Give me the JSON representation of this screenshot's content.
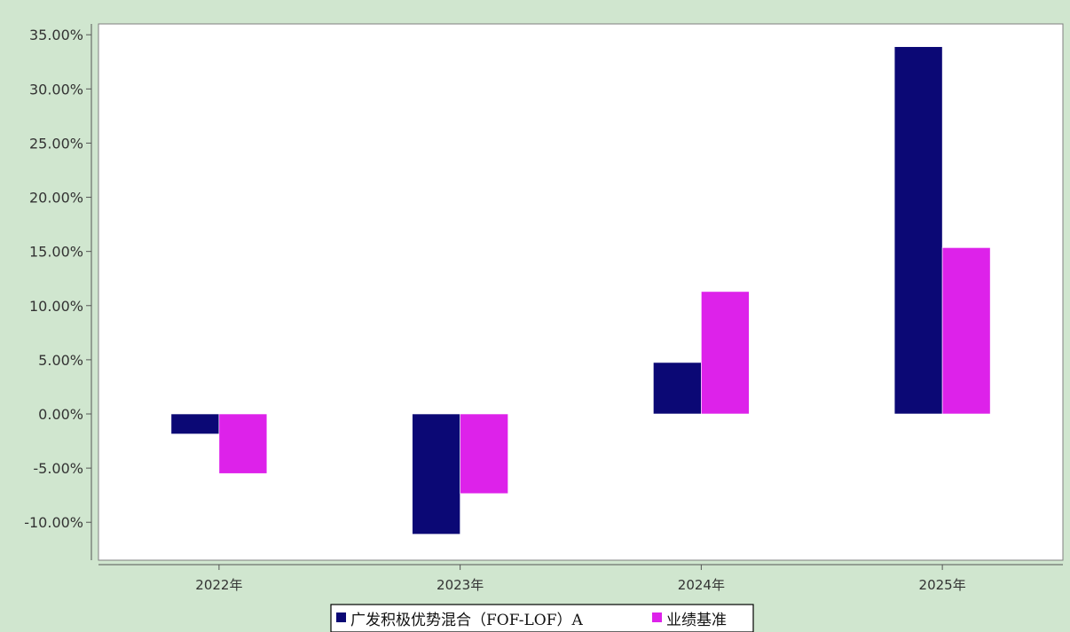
{
  "chart_data": {
    "type": "bar",
    "title": "",
    "xlabel": "",
    "ylabel": "",
    "categories": [
      "2022年",
      "2023年",
      "2024年",
      "2025年"
    ],
    "series": [
      {
        "name": "广发积极优势混合（FOF-LOF）A",
        "values": [
          -1.85,
          -11.1,
          4.75,
          33.9
        ],
        "color": "#0b0875"
      },
      {
        "name": "业绩基准",
        "values": [
          -5.5,
          -7.35,
          11.3,
          15.35
        ],
        "color": "#dd22ea"
      }
    ],
    "ylim": [
      -13.5,
      36.0
    ],
    "yticks": [
      -10,
      -5,
      0,
      5,
      10,
      15,
      20,
      25,
      30,
      35
    ],
    "ytick_labels": [
      "-10.00%",
      "-5.00%",
      "0.00%",
      "5.00%",
      "10.00%",
      "15.00%",
      "20.00%",
      "25.00%",
      "30.00%",
      "35.00%"
    ],
    "grid": false,
    "legend_position": "bottom-center",
    "plot_background": "#ffffff",
    "page_background": "#d0e6cf"
  }
}
